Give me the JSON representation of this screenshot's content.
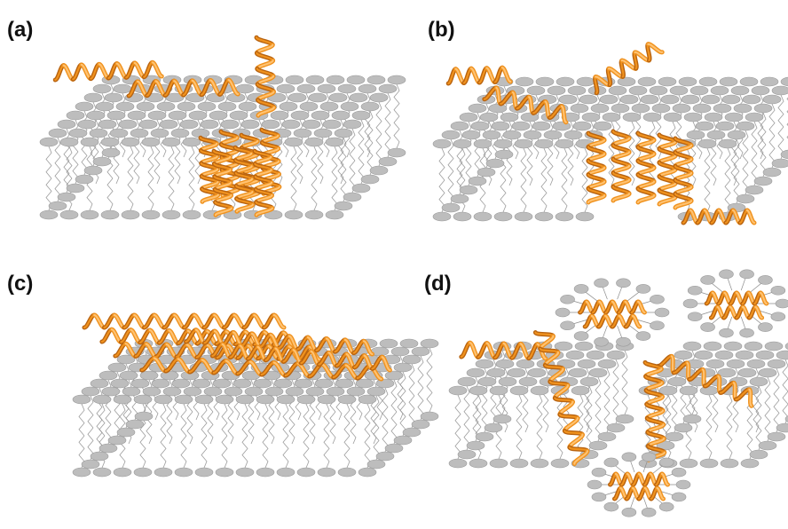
{
  "panels": [
    {
      "id": "a",
      "label": "(a)"
    },
    {
      "id": "b",
      "label": "(b)"
    },
    {
      "id": "c",
      "label": "(c)"
    },
    {
      "id": "d",
      "label": "(d)"
    }
  ],
  "colors": {
    "lipid_head": "#bdbdbd",
    "lipid_head_stroke": "#9a9a9a",
    "lipid_tail": "#8c8c8c",
    "helix": "#f0921e",
    "helix_dark": "#b86310",
    "helix_light": "#ffc271"
  }
}
